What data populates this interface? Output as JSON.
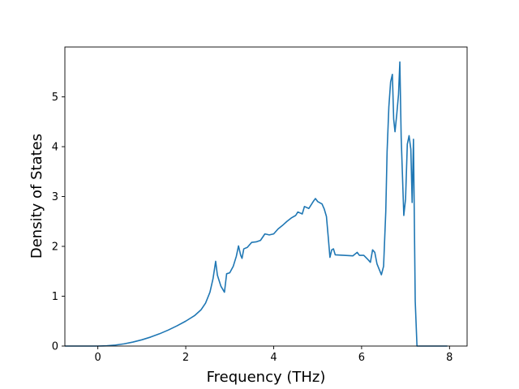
{
  "chart_data": {
    "type": "line",
    "title": "",
    "xlabel": "Frequency (THz)",
    "ylabel": "Density of States",
    "xlim": [
      -0.75,
      8.4
    ],
    "ylim": [
      0,
      6.0
    ],
    "xticks": [
      0,
      2,
      4,
      6,
      8
    ],
    "yticks": [
      0,
      1,
      2,
      3,
      4,
      5
    ],
    "grid": false,
    "legend": "none",
    "series": [
      {
        "color": "#1f77b4",
        "points": [
          [
            -0.75,
            0.0
          ],
          [
            0.0,
            0.0
          ],
          [
            0.2,
            0.005
          ],
          [
            0.4,
            0.02
          ],
          [
            0.6,
            0.045
          ],
          [
            0.8,
            0.08
          ],
          [
            1.0,
            0.125
          ],
          [
            1.2,
            0.18
          ],
          [
            1.4,
            0.245
          ],
          [
            1.6,
            0.32
          ],
          [
            1.8,
            0.405
          ],
          [
            2.0,
            0.5
          ],
          [
            2.2,
            0.61
          ],
          [
            2.35,
            0.73
          ],
          [
            2.45,
            0.86
          ],
          [
            2.55,
            1.08
          ],
          [
            2.62,
            1.35
          ],
          [
            2.68,
            1.7
          ],
          [
            2.72,
            1.42
          ],
          [
            2.8,
            1.2
          ],
          [
            2.88,
            1.08
          ],
          [
            2.93,
            1.45
          ],
          [
            3.0,
            1.47
          ],
          [
            3.08,
            1.6
          ],
          [
            3.15,
            1.8
          ],
          [
            3.2,
            2.01
          ],
          [
            3.25,
            1.82
          ],
          [
            3.28,
            1.76
          ],
          [
            3.32,
            1.95
          ],
          [
            3.4,
            1.98
          ],
          [
            3.5,
            2.08
          ],
          [
            3.6,
            2.09
          ],
          [
            3.7,
            2.12
          ],
          [
            3.8,
            2.25
          ],
          [
            3.9,
            2.23
          ],
          [
            4.0,
            2.25
          ],
          [
            4.1,
            2.35
          ],
          [
            4.2,
            2.42
          ],
          [
            4.3,
            2.5
          ],
          [
            4.4,
            2.57
          ],
          [
            4.5,
            2.62
          ],
          [
            4.55,
            2.69
          ],
          [
            4.65,
            2.65
          ],
          [
            4.7,
            2.8
          ],
          [
            4.8,
            2.76
          ],
          [
            4.9,
            2.9
          ],
          [
            4.95,
            2.96
          ],
          [
            5.0,
            2.9
          ],
          [
            5.1,
            2.85
          ],
          [
            5.15,
            2.75
          ],
          [
            5.2,
            2.6
          ],
          [
            5.24,
            2.2
          ],
          [
            5.28,
            1.78
          ],
          [
            5.32,
            1.93
          ],
          [
            5.36,
            1.95
          ],
          [
            5.4,
            1.83
          ],
          [
            5.6,
            1.82
          ],
          [
            5.8,
            1.81
          ],
          [
            5.9,
            1.88
          ],
          [
            5.95,
            1.82
          ],
          [
            6.05,
            1.82
          ],
          [
            6.15,
            1.73
          ],
          [
            6.2,
            1.68
          ],
          [
            6.25,
            1.93
          ],
          [
            6.3,
            1.88
          ],
          [
            6.35,
            1.65
          ],
          [
            6.45,
            1.43
          ],
          [
            6.5,
            1.6
          ],
          [
            6.55,
            2.7
          ],
          [
            6.58,
            3.9
          ],
          [
            6.62,
            4.8
          ],
          [
            6.66,
            5.3
          ],
          [
            6.7,
            5.45
          ],
          [
            6.73,
            4.55
          ],
          [
            6.76,
            4.3
          ],
          [
            6.8,
            4.65
          ],
          [
            6.84,
            5.05
          ],
          [
            6.87,
            5.7
          ],
          [
            6.9,
            4.2
          ],
          [
            6.96,
            2.62
          ],
          [
            7.0,
            2.95
          ],
          [
            7.04,
            4.05
          ],
          [
            7.08,
            4.22
          ],
          [
            7.12,
            3.95
          ],
          [
            7.15,
            2.88
          ],
          [
            7.18,
            4.15
          ],
          [
            7.22,
            0.9
          ],
          [
            7.26,
            0.0
          ],
          [
            7.5,
            0.0
          ],
          [
            7.95,
            0.0
          ]
        ]
      }
    ]
  }
}
